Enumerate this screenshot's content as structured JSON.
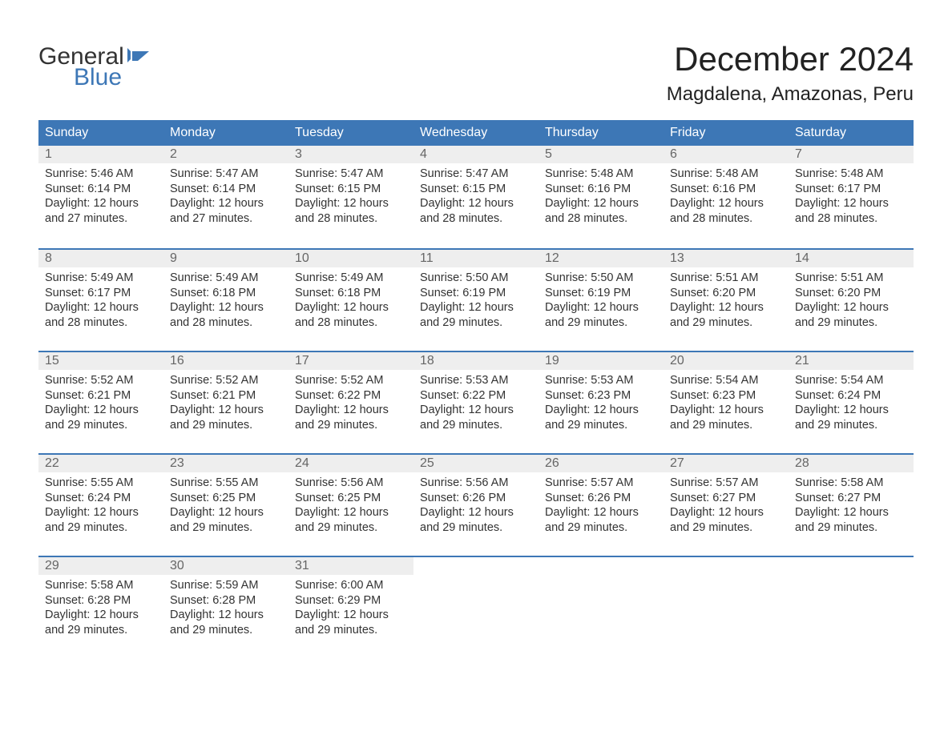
{
  "logo": {
    "line1": "General",
    "line2": "Blue",
    "color_text": "#333333",
    "color_blue": "#3d77b6"
  },
  "title": "December 2024",
  "location": "Magdalena, Amazonas, Peru",
  "colors": {
    "header_bg": "#3d77b6",
    "header_text": "#ffffff",
    "daynum_bg": "#eeeeee",
    "daynum_text": "#666666",
    "body_text": "#333333",
    "border": "#3d77b6",
    "page_bg": "#ffffff"
  },
  "day_headers": [
    "Sunday",
    "Monday",
    "Tuesday",
    "Wednesday",
    "Thursday",
    "Friday",
    "Saturday"
  ],
  "weeks": [
    [
      {
        "n": "1",
        "sunrise": "Sunrise: 5:46 AM",
        "sunset": "Sunset: 6:14 PM",
        "d1": "Daylight: 12 hours",
        "d2": "and 27 minutes."
      },
      {
        "n": "2",
        "sunrise": "Sunrise: 5:47 AM",
        "sunset": "Sunset: 6:14 PM",
        "d1": "Daylight: 12 hours",
        "d2": "and 27 minutes."
      },
      {
        "n": "3",
        "sunrise": "Sunrise: 5:47 AM",
        "sunset": "Sunset: 6:15 PM",
        "d1": "Daylight: 12 hours",
        "d2": "and 28 minutes."
      },
      {
        "n": "4",
        "sunrise": "Sunrise: 5:47 AM",
        "sunset": "Sunset: 6:15 PM",
        "d1": "Daylight: 12 hours",
        "d2": "and 28 minutes."
      },
      {
        "n": "5",
        "sunrise": "Sunrise: 5:48 AM",
        "sunset": "Sunset: 6:16 PM",
        "d1": "Daylight: 12 hours",
        "d2": "and 28 minutes."
      },
      {
        "n": "6",
        "sunrise": "Sunrise: 5:48 AM",
        "sunset": "Sunset: 6:16 PM",
        "d1": "Daylight: 12 hours",
        "d2": "and 28 minutes."
      },
      {
        "n": "7",
        "sunrise": "Sunrise: 5:48 AM",
        "sunset": "Sunset: 6:17 PM",
        "d1": "Daylight: 12 hours",
        "d2": "and 28 minutes."
      }
    ],
    [
      {
        "n": "8",
        "sunrise": "Sunrise: 5:49 AM",
        "sunset": "Sunset: 6:17 PM",
        "d1": "Daylight: 12 hours",
        "d2": "and 28 minutes."
      },
      {
        "n": "9",
        "sunrise": "Sunrise: 5:49 AM",
        "sunset": "Sunset: 6:18 PM",
        "d1": "Daylight: 12 hours",
        "d2": "and 28 minutes."
      },
      {
        "n": "10",
        "sunrise": "Sunrise: 5:49 AM",
        "sunset": "Sunset: 6:18 PM",
        "d1": "Daylight: 12 hours",
        "d2": "and 28 minutes."
      },
      {
        "n": "11",
        "sunrise": "Sunrise: 5:50 AM",
        "sunset": "Sunset: 6:19 PM",
        "d1": "Daylight: 12 hours",
        "d2": "and 29 minutes."
      },
      {
        "n": "12",
        "sunrise": "Sunrise: 5:50 AM",
        "sunset": "Sunset: 6:19 PM",
        "d1": "Daylight: 12 hours",
        "d2": "and 29 minutes."
      },
      {
        "n": "13",
        "sunrise": "Sunrise: 5:51 AM",
        "sunset": "Sunset: 6:20 PM",
        "d1": "Daylight: 12 hours",
        "d2": "and 29 minutes."
      },
      {
        "n": "14",
        "sunrise": "Sunrise: 5:51 AM",
        "sunset": "Sunset: 6:20 PM",
        "d1": "Daylight: 12 hours",
        "d2": "and 29 minutes."
      }
    ],
    [
      {
        "n": "15",
        "sunrise": "Sunrise: 5:52 AM",
        "sunset": "Sunset: 6:21 PM",
        "d1": "Daylight: 12 hours",
        "d2": "and 29 minutes."
      },
      {
        "n": "16",
        "sunrise": "Sunrise: 5:52 AM",
        "sunset": "Sunset: 6:21 PM",
        "d1": "Daylight: 12 hours",
        "d2": "and 29 minutes."
      },
      {
        "n": "17",
        "sunrise": "Sunrise: 5:52 AM",
        "sunset": "Sunset: 6:22 PM",
        "d1": "Daylight: 12 hours",
        "d2": "and 29 minutes."
      },
      {
        "n": "18",
        "sunrise": "Sunrise: 5:53 AM",
        "sunset": "Sunset: 6:22 PM",
        "d1": "Daylight: 12 hours",
        "d2": "and 29 minutes."
      },
      {
        "n": "19",
        "sunrise": "Sunrise: 5:53 AM",
        "sunset": "Sunset: 6:23 PM",
        "d1": "Daylight: 12 hours",
        "d2": "and 29 minutes."
      },
      {
        "n": "20",
        "sunrise": "Sunrise: 5:54 AM",
        "sunset": "Sunset: 6:23 PM",
        "d1": "Daylight: 12 hours",
        "d2": "and 29 minutes."
      },
      {
        "n": "21",
        "sunrise": "Sunrise: 5:54 AM",
        "sunset": "Sunset: 6:24 PM",
        "d1": "Daylight: 12 hours",
        "d2": "and 29 minutes."
      }
    ],
    [
      {
        "n": "22",
        "sunrise": "Sunrise: 5:55 AM",
        "sunset": "Sunset: 6:24 PM",
        "d1": "Daylight: 12 hours",
        "d2": "and 29 minutes."
      },
      {
        "n": "23",
        "sunrise": "Sunrise: 5:55 AM",
        "sunset": "Sunset: 6:25 PM",
        "d1": "Daylight: 12 hours",
        "d2": "and 29 minutes."
      },
      {
        "n": "24",
        "sunrise": "Sunrise: 5:56 AM",
        "sunset": "Sunset: 6:25 PM",
        "d1": "Daylight: 12 hours",
        "d2": "and 29 minutes."
      },
      {
        "n": "25",
        "sunrise": "Sunrise: 5:56 AM",
        "sunset": "Sunset: 6:26 PM",
        "d1": "Daylight: 12 hours",
        "d2": "and 29 minutes."
      },
      {
        "n": "26",
        "sunrise": "Sunrise: 5:57 AM",
        "sunset": "Sunset: 6:26 PM",
        "d1": "Daylight: 12 hours",
        "d2": "and 29 minutes."
      },
      {
        "n": "27",
        "sunrise": "Sunrise: 5:57 AM",
        "sunset": "Sunset: 6:27 PM",
        "d1": "Daylight: 12 hours",
        "d2": "and 29 minutes."
      },
      {
        "n": "28",
        "sunrise": "Sunrise: 5:58 AM",
        "sunset": "Sunset: 6:27 PM",
        "d1": "Daylight: 12 hours",
        "d2": "and 29 minutes."
      }
    ],
    [
      {
        "n": "29",
        "sunrise": "Sunrise: 5:58 AM",
        "sunset": "Sunset: 6:28 PM",
        "d1": "Daylight: 12 hours",
        "d2": "and 29 minutes."
      },
      {
        "n": "30",
        "sunrise": "Sunrise: 5:59 AM",
        "sunset": "Sunset: 6:28 PM",
        "d1": "Daylight: 12 hours",
        "d2": "and 29 minutes."
      },
      {
        "n": "31",
        "sunrise": "Sunrise: 6:00 AM",
        "sunset": "Sunset: 6:29 PM",
        "d1": "Daylight: 12 hours",
        "d2": "and 29 minutes."
      },
      {
        "empty": true
      },
      {
        "empty": true
      },
      {
        "empty": true
      },
      {
        "empty": true
      }
    ]
  ]
}
